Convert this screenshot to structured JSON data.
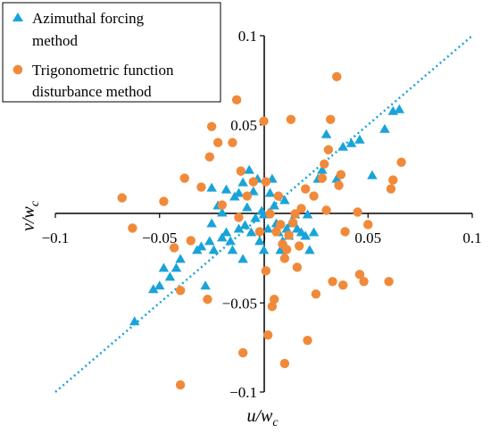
{
  "chart_data": {
    "type": "scatter",
    "xlabel": {
      "main": "u/w",
      "sub": "c"
    },
    "ylabel": {
      "main": "v/w",
      "sub": "c"
    },
    "xlim": [
      -0.1,
      0.1
    ],
    "ylim": [
      -0.1,
      0.1
    ],
    "x_ticks": [
      "−0.1",
      "−0.05",
      "0",
      "0.05",
      "0.1"
    ],
    "y_ticks": [
      "0.1",
      "0.05",
      "0",
      "−0.05",
      "−0.1"
    ],
    "legend_position": "top-left",
    "reference_line": {
      "x": [
        -0.1,
        0.1
      ],
      "y": [
        -0.1,
        0.1
      ],
      "color": "#1AA3D9",
      "style": "dotted"
    },
    "series": [
      {
        "name": [
          "Azimuthal forcing",
          "method"
        ],
        "marker": "triangle",
        "color": "#1AA3D9",
        "points": [
          [
            -0.062,
            -0.06
          ],
          [
            -0.053,
            -0.042
          ],
          [
            -0.05,
            -0.04
          ],
          [
            -0.048,
            -0.03
          ],
          [
            -0.045,
            -0.035
          ],
          [
            -0.042,
            -0.03
          ],
          [
            -0.04,
            -0.025
          ],
          [
            -0.032,
            -0.02
          ],
          [
            -0.03,
            -0.018
          ],
          [
            -0.028,
            -0.04
          ],
          [
            -0.026,
            -0.015
          ],
          [
            -0.025,
            -0.005
          ],
          [
            -0.025,
            0.015
          ],
          [
            -0.024,
            -0.02
          ],
          [
            -0.022,
            0.005
          ],
          [
            -0.02,
            -0.013
          ],
          [
            -0.02,
            0.001
          ],
          [
            -0.018,
            -0.01
          ],
          [
            -0.018,
            0.014
          ],
          [
            -0.016,
            -0.015
          ],
          [
            -0.015,
            -0.02
          ],
          [
            -0.014,
            0.01
          ],
          [
            -0.012,
            0.012
          ],
          [
            -0.012,
            -0.008
          ],
          [
            -0.01,
            -0.025
          ],
          [
            -0.01,
            0.018
          ],
          [
            -0.009,
            -0.006
          ],
          [
            -0.008,
            0.004
          ],
          [
            -0.007,
            0.025
          ],
          [
            -0.006,
            -0.01
          ],
          [
            -0.005,
            0.013
          ],
          [
            -0.004,
            -0.002
          ],
          [
            -0.003,
            0.02
          ],
          [
            -0.002,
            -0.015
          ],
          [
            -0.001,
            0.002
          ],
          [
            0.0,
            0.0
          ],
          [
            0.0,
            -0.02
          ],
          [
            0.002,
            -0.008
          ],
          [
            0.003,
            0.012
          ],
          [
            0.004,
            0.02
          ],
          [
            0.005,
            0.005
          ],
          [
            0.006,
            -0.005
          ],
          [
            0.007,
            -0.01
          ],
          [
            0.008,
            -0.02
          ],
          [
            0.009,
            -0.015
          ],
          [
            0.01,
            0.008
          ],
          [
            0.011,
            -0.008
          ],
          [
            0.012,
            -0.012
          ],
          [
            0.013,
            -0.005
          ],
          [
            0.015,
            0.0
          ],
          [
            0.016,
            -0.008
          ],
          [
            0.018,
            -0.01
          ],
          [
            0.02,
            -0.012
          ],
          [
            0.021,
            0.0
          ],
          [
            0.022,
            -0.02
          ],
          [
            0.024,
            -0.01
          ],
          [
            0.026,
            0.02
          ],
          [
            0.028,
            0.025
          ],
          [
            0.03,
            0.045
          ],
          [
            0.035,
            0.02
          ],
          [
            0.038,
            0.038
          ],
          [
            0.042,
            0.04
          ],
          [
            0.046,
            0.042
          ],
          [
            0.052,
            0.022
          ],
          [
            0.058,
            0.048
          ],
          [
            0.062,
            0.058
          ],
          [
            0.065,
            0.059
          ]
        ]
      },
      {
        "name": [
          "Trigonometric function",
          "disturbance method"
        ],
        "marker": "circle",
        "color": "#F08A3A",
        "points": [
          [
            -0.068,
            0.009
          ],
          [
            -0.063,
            -0.008
          ],
          [
            -0.048,
            0.007
          ],
          [
            -0.043,
            -0.019
          ],
          [
            -0.04,
            -0.043
          ],
          [
            -0.04,
            -0.096
          ],
          [
            -0.038,
            0.02
          ],
          [
            -0.035,
            -0.015
          ],
          [
            -0.031,
            0.067
          ],
          [
            -0.03,
            0.015
          ],
          [
            -0.027,
            -0.048
          ],
          [
            -0.026,
            0.032
          ],
          [
            -0.025,
            0.049
          ],
          [
            -0.024,
            0.066
          ],
          [
            -0.022,
            0.04
          ],
          [
            -0.02,
            0.005
          ],
          [
            -0.015,
            0.04
          ],
          [
            -0.013,
            0.064
          ],
          [
            -0.012,
            -0.002
          ],
          [
            -0.011,
            0.024
          ],
          [
            -0.01,
            -0.078
          ],
          [
            -0.008,
            0.01
          ],
          [
            -0.005,
            0.018
          ],
          [
            -0.002,
            -0.01
          ],
          [
            0.0,
            0.052
          ],
          [
            0.001,
            0.018
          ],
          [
            0.001,
            -0.032
          ],
          [
            0.002,
            -0.068
          ],
          [
            0.003,
            0.0
          ],
          [
            0.004,
            -0.052
          ],
          [
            0.005,
            -0.048
          ],
          [
            0.006,
            -0.01
          ],
          [
            0.007,
            0.01
          ],
          [
            0.008,
            -0.006
          ],
          [
            0.009,
            -0.017
          ],
          [
            0.01,
            -0.084
          ],
          [
            0.01,
            -0.025
          ],
          [
            0.011,
            -0.02
          ],
          [
            0.012,
            -0.012
          ],
          [
            0.013,
            0.053
          ],
          [
            0.014,
            -0.005
          ],
          [
            0.015,
            0.0
          ],
          [
            0.016,
            -0.03
          ],
          [
            0.017,
            -0.018
          ],
          [
            0.018,
            0.003
          ],
          [
            0.02,
            0.014
          ],
          [
            0.021,
            -0.071
          ],
          [
            0.024,
            0.01
          ],
          [
            0.025,
            -0.045
          ],
          [
            0.028,
            0.02
          ],
          [
            0.029,
            0.028
          ],
          [
            0.03,
            0.002
          ],
          [
            0.031,
            0.036
          ],
          [
            0.032,
            0.053
          ],
          [
            0.033,
            -0.038
          ],
          [
            0.035,
            0.077
          ],
          [
            0.036,
            0.016
          ],
          [
            0.037,
            0.022
          ],
          [
            0.038,
            -0.04
          ],
          [
            0.039,
            -0.01
          ],
          [
            0.045,
            0.001
          ],
          [
            0.046,
            -0.034
          ],
          [
            0.048,
            -0.038
          ],
          [
            0.05,
            -0.006
          ],
          [
            0.06,
            -0.038
          ],
          [
            0.061,
            0.014
          ],
          [
            0.062,
            0.019
          ],
          [
            0.066,
            0.029
          ]
        ]
      }
    ]
  }
}
